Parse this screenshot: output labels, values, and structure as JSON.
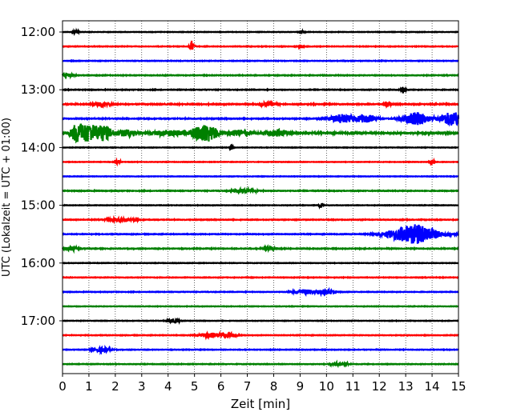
{
  "chart_data": {
    "type": "line",
    "title": "",
    "xlabel": "Zeit  [min]",
    "ylabel": "UTC (Lokalzeit = UTC + 01:00)",
    "xlim": [
      0,
      15
    ],
    "x_ticks": [
      "0",
      "1",
      "2",
      "3",
      "4",
      "5",
      "6",
      "7",
      "8",
      "9",
      "10",
      "11",
      "12",
      "13",
      "14",
      "15"
    ],
    "y_ticks": [
      {
        "label": "12:00",
        "trace": 0
      },
      {
        "label": "13:00",
        "trace": 4
      },
      {
        "label": "14:00",
        "trace": 8
      },
      {
        "label": "15:00",
        "trace": 12
      },
      {
        "label": "16:00",
        "trace": 16
      },
      {
        "label": "17:00",
        "trace": 20
      }
    ],
    "grid": "x-dotted",
    "trace_colors": [
      "#000000",
      "#ff0000",
      "#0000ff",
      "#008000"
    ],
    "traces": [
      {
        "start": "12:00",
        "noise": 0.1,
        "events": [
          {
            "t": 0.5,
            "amp": 1.2,
            "dur": 0.1
          },
          {
            "t": 9.1,
            "amp": 0.8,
            "dur": 0.1
          }
        ]
      },
      {
        "start": "12:15",
        "noise": 0.12,
        "events": [
          {
            "t": 4.9,
            "amp": 3.0,
            "dur": 0.08
          },
          {
            "t": 9.0,
            "amp": 0.9,
            "dur": 0.1
          }
        ]
      },
      {
        "start": "12:30",
        "noise": 0.12,
        "events": []
      },
      {
        "start": "12:45",
        "noise": 0.14,
        "events": [
          {
            "t": 0.2,
            "amp": 0.8,
            "dur": 0.2
          }
        ]
      },
      {
        "start": "13:00",
        "noise": 0.14,
        "events": [
          {
            "t": 12.9,
            "amp": 1.8,
            "dur": 0.08
          }
        ]
      },
      {
        "start": "13:15",
        "noise": 0.2,
        "events": [
          {
            "t": 1.5,
            "amp": 0.9,
            "dur": 0.3
          },
          {
            "t": 7.8,
            "amp": 0.9,
            "dur": 0.3
          },
          {
            "t": 12.3,
            "amp": 1.6,
            "dur": 0.1
          }
        ]
      },
      {
        "start": "13:30",
        "noise": 0.18,
        "events": [
          {
            "t": 10.6,
            "amp": 2.2,
            "dur": 0.5
          },
          {
            "t": 11.5,
            "amp": 2.0,
            "dur": 0.35
          },
          {
            "t": 13.4,
            "amp": 3.2,
            "dur": 0.45
          },
          {
            "t": 14.8,
            "amp": 3.6,
            "dur": 0.5
          }
        ]
      },
      {
        "start": "13:45",
        "noise": 0.3,
        "events": [
          {
            "t": 0.55,
            "amp": 4.5,
            "dur": 0.25
          },
          {
            "t": 1.0,
            "amp": 4.5,
            "dur": 0.3
          },
          {
            "t": 1.55,
            "amp": 4.0,
            "dur": 0.3
          },
          {
            "t": 2.4,
            "amp": 1.6,
            "dur": 0.4
          },
          {
            "t": 4.0,
            "amp": 1.4,
            "dur": 0.6
          },
          {
            "t": 5.4,
            "amp": 4.5,
            "dur": 0.5
          },
          {
            "t": 6.7,
            "amp": 1.6,
            "dur": 0.4
          },
          {
            "t": 8.2,
            "amp": 1.6,
            "dur": 0.4
          }
        ]
      },
      {
        "start": "14:00",
        "noise": 0.1,
        "events": [
          {
            "t": 6.4,
            "amp": 1.2,
            "dur": 0.06
          }
        ]
      },
      {
        "start": "14:15",
        "noise": 0.1,
        "events": [
          {
            "t": 2.1,
            "amp": 1.0,
            "dur": 0.1
          },
          {
            "t": 14.0,
            "amp": 1.0,
            "dur": 0.1
          }
        ]
      },
      {
        "start": "14:30",
        "noise": 0.1,
        "events": []
      },
      {
        "start": "14:45",
        "noise": 0.15,
        "events": [
          {
            "t": 6.9,
            "amp": 1.0,
            "dur": 0.4
          }
        ]
      },
      {
        "start": "15:00",
        "noise": 0.1,
        "events": [
          {
            "t": 9.8,
            "amp": 1.6,
            "dur": 0.06
          }
        ]
      },
      {
        "start": "15:15",
        "noise": 0.14,
        "events": [
          {
            "t": 2.2,
            "amp": 0.9,
            "dur": 0.5
          }
        ]
      },
      {
        "start": "15:30",
        "noise": 0.14,
        "events": [
          {
            "t": 13.3,
            "amp": 5.0,
            "dur": 0.9
          }
        ]
      },
      {
        "start": "15:45",
        "noise": 0.16,
        "events": [
          {
            "t": 0.3,
            "amp": 1.0,
            "dur": 0.3
          },
          {
            "t": 7.8,
            "amp": 0.9,
            "dur": 0.2
          }
        ]
      },
      {
        "start": "16:00",
        "noise": 0.1,
        "events": []
      },
      {
        "start": "16:15",
        "noise": 0.12,
        "events": []
      },
      {
        "start": "16:30",
        "noise": 0.12,
        "events": [
          {
            "t": 9.2,
            "amp": 1.2,
            "dur": 0.4
          },
          {
            "t": 10.0,
            "amp": 1.5,
            "dur": 0.3
          }
        ]
      },
      {
        "start": "16:45",
        "noise": 0.1,
        "events": []
      },
      {
        "start": "17:00",
        "noise": 0.1,
        "events": [
          {
            "t": 4.2,
            "amp": 0.9,
            "dur": 0.2
          }
        ]
      },
      {
        "start": "17:15",
        "noise": 0.12,
        "events": [
          {
            "t": 5.6,
            "amp": 1.3,
            "dur": 0.4
          },
          {
            "t": 6.3,
            "amp": 1.0,
            "dur": 0.3
          }
        ]
      },
      {
        "start": "17:30",
        "noise": 0.12,
        "events": [
          {
            "t": 1.5,
            "amp": 1.2,
            "dur": 0.3
          }
        ]
      },
      {
        "start": "17:45",
        "noise": 0.12,
        "events": [
          {
            "t": 10.5,
            "amp": 0.9,
            "dur": 0.3
          }
        ]
      }
    ]
  }
}
